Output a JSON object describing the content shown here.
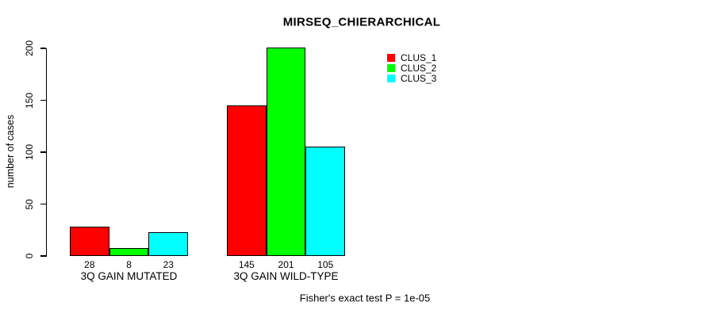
{
  "chart_data": {
    "type": "bar",
    "title": "MIRSEQ_CHIERARCHICAL",
    "ylabel": "number of cases",
    "xlabel": "",
    "categories": [
      "3Q GAIN MUTATED",
      "3Q GAIN WILD-TYPE"
    ],
    "series": [
      {
        "name": "CLUS_1",
        "color": "#ff0000",
        "values": [
          28,
          145
        ]
      },
      {
        "name": "CLUS_2",
        "color": "#00ff00",
        "values": [
          8,
          201
        ]
      },
      {
        "name": "CLUS_3",
        "color": "#00ffff",
        "values": [
          23,
          105
        ]
      }
    ],
    "bar_value_labels": [
      [
        28,
        8,
        23
      ],
      [
        145,
        201,
        105
      ]
    ],
    "yticks": [
      0,
      50,
      100,
      150,
      200
    ],
    "ylim": [
      0,
      200
    ],
    "grid": false,
    "legend_position": "top-right",
    "annotation": "Fisher's exact test P = 1e-05"
  }
}
